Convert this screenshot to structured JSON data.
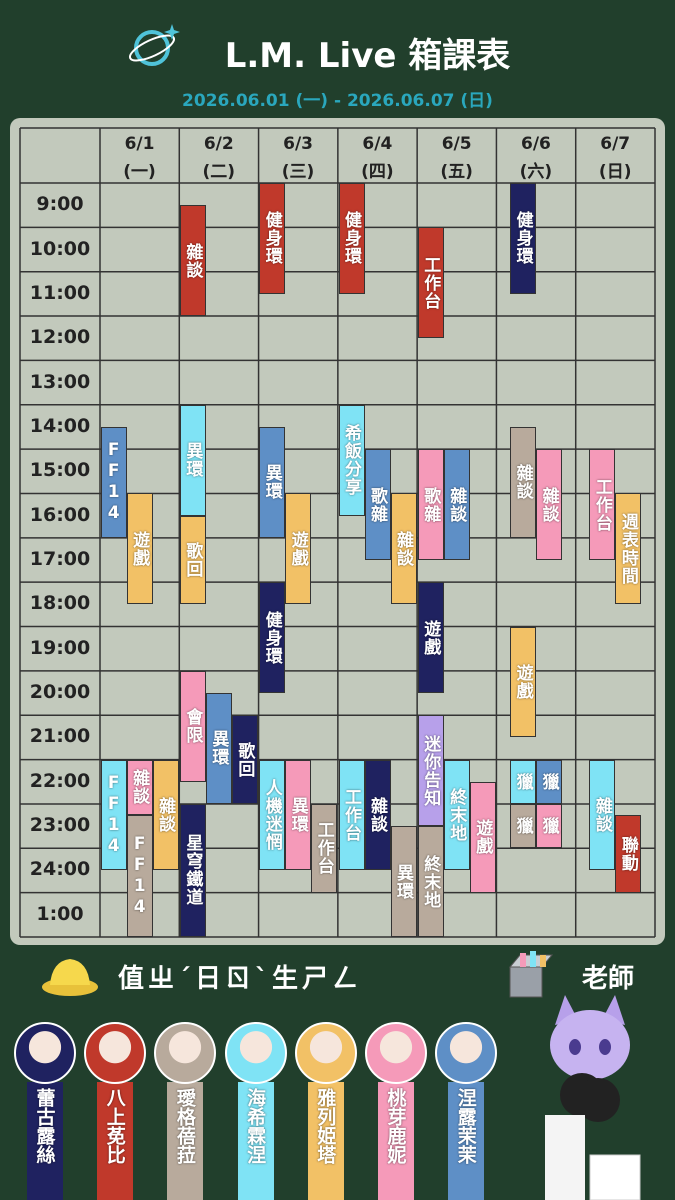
{
  "header": {
    "title": "L.M. Live 箱課表",
    "subtitle": "2026.06.01 (一) - 2026.06.07 (日)"
  },
  "schedule": {
    "times": [
      "9:00",
      "10:00",
      "11:00",
      "12:00",
      "13:00",
      "14:00",
      "15:00",
      "16:00",
      "17:00",
      "18:00",
      "19:00",
      "20:00",
      "21:00",
      "22:00",
      "23:00",
      "24:00",
      "1:00"
    ],
    "days": [
      {
        "date": "6/1",
        "weekday": "(一)",
        "events": [
          {
            "label": "遊戲",
            "start": 15.5,
            "end": 18,
            "color": "#f2c166"
          },
          {
            "label": "FF14",
            "start": 14,
            "end": 16.5,
            "color": "#5e8fc6"
          },
          {
            "label": "FF14",
            "start": 21.5,
            "end": 24,
            "color": "#7fe3f5"
          },
          {
            "label": "雜談",
            "start": 21.5,
            "end": 22.75,
            "color": "#f59ab9"
          },
          {
            "label": "雜談",
            "start": 21.5,
            "end": 24,
            "color": "#f2c166"
          },
          {
            "label": "FF14",
            "start": 22.75,
            "end": 25.5,
            "color": "#b8aa9c"
          }
        ]
      },
      {
        "date": "6/2",
        "weekday": "(二)",
        "events": [
          {
            "label": "雜談",
            "start": 9,
            "end": 11.5,
            "color": "#c0392b"
          },
          {
            "label": "異環",
            "start": 13.5,
            "end": 16,
            "color": "#7fe3f5"
          },
          {
            "label": "歌回",
            "start": 16,
            "end": 18,
            "color": "#f2c166"
          },
          {
            "label": "會限",
            "start": 19.5,
            "end": 22,
            "color": "#f59ab9"
          },
          {
            "label": "異環",
            "start": 20,
            "end": 22.5,
            "color": "#5e8fc6"
          },
          {
            "label": "歌回",
            "start": 20.5,
            "end": 22.5,
            "color": "#1f2260"
          },
          {
            "label": "星穹鐵道",
            "start": 22.5,
            "end": 25.5,
            "color": "#1f2260"
          }
        ]
      },
      {
        "date": "6/3",
        "weekday": "(三)",
        "events": [
          {
            "label": "健身環",
            "start": 8.5,
            "end": 11,
            "color": "#c0392b"
          },
          {
            "label": "異環",
            "start": 14,
            "end": 16.5,
            "color": "#5e8fc6"
          },
          {
            "label": "遊戲",
            "start": 15.5,
            "end": 18,
            "color": "#f2c166"
          },
          {
            "label": "健身環",
            "start": 17.5,
            "end": 20,
            "color": "#1f2260"
          },
          {
            "label": "人機迷惘",
            "start": 21.5,
            "end": 24,
            "color": "#7fe3f5"
          },
          {
            "label": "異環",
            "start": 21.5,
            "end": 24,
            "color": "#f59ab9"
          },
          {
            "label": "工作台",
            "start": 22.5,
            "end": 24.5,
            "color": "#b8aa9c"
          }
        ]
      },
      {
        "date": "6/4",
        "weekday": "(四)",
        "events": [
          {
            "label": "健身環",
            "start": 8.5,
            "end": 11,
            "color": "#c0392b"
          },
          {
            "label": "希飯分享",
            "start": 13.5,
            "end": 16,
            "color": "#7fe3f5"
          },
          {
            "label": "歌雜",
            "start": 14.5,
            "end": 17,
            "color": "#5e8fc6"
          },
          {
            "label": "雜談",
            "start": 15.5,
            "end": 18,
            "color": "#f2c166"
          },
          {
            "label": "工作台",
            "start": 21.5,
            "end": 24,
            "color": "#7fe3f5"
          },
          {
            "label": "雜談",
            "start": 21.5,
            "end": 24,
            "color": "#1f2260"
          },
          {
            "label": "異環",
            "start": 23,
            "end": 25.5,
            "color": "#b8aa9c"
          }
        ]
      },
      {
        "date": "6/5",
        "weekday": "(五)",
        "events": [
          {
            "label": "工作台",
            "start": 9.5,
            "end": 12,
            "color": "#c0392b"
          },
          {
            "label": "歌雜",
            "start": 14.5,
            "end": 17,
            "color": "#f59ab9"
          },
          {
            "label": "雜談",
            "start": 14.5,
            "end": 17,
            "color": "#5e8fc6"
          },
          {
            "label": "遊戲",
            "start": 17.5,
            "end": 20,
            "color": "#1f2260"
          },
          {
            "label": "迷你告知",
            "start": 20.5,
            "end": 23,
            "color": "#b7a0ea"
          },
          {
            "label": "終末地",
            "start": 21.5,
            "end": 24,
            "color": "#7fe3f5"
          },
          {
            "label": "遊戲",
            "start": 22,
            "end": 24.5,
            "color": "#f59ab9"
          },
          {
            "label": "終末地",
            "start": 23,
            "end": 25.5,
            "color": "#b8aa9c"
          }
        ]
      },
      {
        "date": "6/6",
        "weekday": "(六)",
        "events": [
          {
            "label": "健身環",
            "start": 8.5,
            "end": 11,
            "color": "#1f2260"
          },
          {
            "label": "雜談",
            "start": 14,
            "end": 16.5,
            "color": "#b8aa9c"
          },
          {
            "label": "雜談",
            "start": 14.5,
            "end": 17,
            "color": "#f59ab9"
          },
          {
            "label": "遊戲",
            "start": 18.5,
            "end": 21,
            "color": "#f2c166"
          },
          {
            "label": "獵",
            "start": 21.5,
            "end": 22.5,
            "color": "#7fe3f5"
          },
          {
            "label": "獵",
            "start": 21.5,
            "end": 22.5,
            "color": "#5e8fc6"
          },
          {
            "label": "獵",
            "start": 22.5,
            "end": 23.5,
            "color": "#b8aa9c"
          },
          {
            "label": "獵",
            "start": 22.5,
            "end": 23.5,
            "color": "#f59ab9"
          }
        ]
      },
      {
        "date": "6/7",
        "weekday": "(日)",
        "events": [
          {
            "label": "週表時間",
            "start": 15.5,
            "end": 18,
            "color": "#f2c166"
          },
          {
            "label": "工作台",
            "start": 14.5,
            "end": 17,
            "color": "#f59ab9"
          },
          {
            "label": "雜談",
            "start": 21.5,
            "end": 24,
            "color": "#7fe3f5"
          },
          {
            "label": "聯動",
            "start": 22.75,
            "end": 24.5,
            "color": "#c0392b"
          }
        ]
      }
    ]
  },
  "legend": {
    "duty": "值ㄓˊ日ㄖˋ生ㄕㄥ",
    "teacher": "老師"
  },
  "streamers": [
    {
      "name": "蕾古露絲",
      "color": "#1f2260"
    },
    {
      "name": "八上莬比",
      "color": "#c0392b"
    },
    {
      "name": "璦格蓓菈",
      "color": "#b8aa9c"
    },
    {
      "name": "海希霖涅",
      "color": "#7fe3f5"
    },
    {
      "name": "雅列姫塔",
      "color": "#f2c166"
    },
    {
      "name": "桃芽鹿妮",
      "color": "#f59ab9"
    },
    {
      "name": "涅露茉茉",
      "color": "#5e8fc6"
    }
  ]
}
